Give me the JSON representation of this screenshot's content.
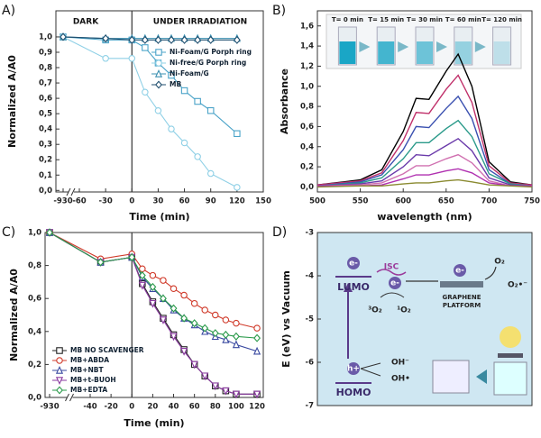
{
  "chart_data": [
    {
      "type": "line",
      "panel": "A)",
      "xlabel": "Time (min)",
      "ylabel": "Normalized A/A0",
      "annotations": [
        "DARK",
        "UNDER IRRADIATION"
      ],
      "x": [
        -930,
        -30,
        0,
        15,
        30,
        45,
        60,
        75,
        90,
        120
      ],
      "xlim": [
        -930,
        150
      ],
      "xticks": [
        -930,
        -60,
        -30,
        0,
        30,
        60,
        90,
        120,
        150
      ],
      "axis_break": true,
      "divider_x": 0,
      "ylim": [
        -0.01,
        1.17
      ],
      "yticks": [
        {
          "value": 0,
          "label": "0,0"
        },
        {
          "value": 0.1,
          "label": "0,1"
        },
        {
          "value": 0.2,
          "label": "0,2"
        },
        {
          "value": 0.3,
          "label": "0,3"
        },
        {
          "value": 0.4,
          "label": "0,4"
        },
        {
          "value": 0.5,
          "label": "0,5"
        },
        {
          "value": 0.6,
          "label": "0,6"
        },
        {
          "value": 0.7,
          "label": "0,7"
        },
        {
          "value": 0.8,
          "label": "0,8"
        },
        {
          "value": 0.9,
          "label": "0,9"
        },
        {
          "value": 1.0,
          "label": "1,0"
        }
      ],
      "legend": "upper-right",
      "series": [
        {
          "name": "Ni-Foam/G Porph ring",
          "color": "#4aa3c8",
          "marker": "square",
          "values": [
            1.0,
            0.98,
            0.98,
            0.93,
            0.83,
            0.75,
            0.65,
            0.58,
            0.52,
            0.37
          ]
        },
        {
          "name": "Ni-free/G Porph ring",
          "color": "#8fd0e6",
          "marker": "circle",
          "values": [
            1.0,
            0.86,
            0.86,
            0.64,
            0.52,
            0.4,
            0.31,
            0.22,
            0.11,
            0.02
          ]
        },
        {
          "name": "Ni-Foam/G",
          "color": "#3a8fb0",
          "marker": "triangle",
          "values": [
            1.0,
            0.99,
            0.99,
            0.99,
            0.99,
            0.99,
            0.99,
            0.99,
            0.99,
            0.99
          ]
        },
        {
          "name": "MB",
          "color": "#1f4e6e",
          "marker": "diamond",
          "values": [
            1.0,
            0.99,
            0.98,
            0.98,
            0.98,
            0.98,
            0.98,
            0.98,
            0.98,
            0.98
          ]
        }
      ]
    },
    {
      "type": "line",
      "panel": "B)",
      "xlabel": "wavelength (nm)",
      "ylabel": "Absorbance",
      "inset_labels": [
        {
          "text": "T= 0 min",
          "color": "#000000"
        },
        {
          "text": "T= 15 min",
          "color": "#c0306a"
        },
        {
          "text": "T= 30 min",
          "color": "#2a9a5a"
        },
        {
          "text": "T= 60 min",
          "color": "#6a3aaa"
        },
        {
          "text": "T= 120 min",
          "color": "#8a8a30"
        }
      ],
      "x": [
        500,
        550,
        575,
        600,
        615,
        630,
        650,
        664,
        680,
        700,
        725,
        750
      ],
      "xlim": [
        500,
        750
      ],
      "xticks": [
        500,
        550,
        600,
        650,
        700,
        750
      ],
      "ylim": [
        -0.05,
        1.75
      ],
      "yticks": [
        {
          "value": 0,
          "label": "0,0"
        },
        {
          "value": 0.2,
          "label": "0,2"
        },
        {
          "value": 0.4,
          "label": "0,4"
        },
        {
          "value": 0.6,
          "label": "0,6"
        },
        {
          "value": 0.8,
          "label": "0,8"
        },
        {
          "value": 1.0,
          "label": "1,0"
        },
        {
          "value": 1.2,
          "label": "1,2"
        },
        {
          "value": 1.4,
          "label": "1,4"
        },
        {
          "value": 1.6,
          "label": "1,6"
        }
      ],
      "series": [
        {
          "color": "#000000",
          "values": [
            0.02,
            0.07,
            0.17,
            0.55,
            0.88,
            0.87,
            1.15,
            1.32,
            1.0,
            0.25,
            0.05,
            0.02
          ]
        },
        {
          "color": "#c0306a",
          "values": [
            0.02,
            0.06,
            0.14,
            0.46,
            0.74,
            0.73,
            0.97,
            1.11,
            0.84,
            0.21,
            0.04,
            0.02
          ]
        },
        {
          "color": "#3a50b0",
          "values": [
            0.01,
            0.05,
            0.12,
            0.37,
            0.6,
            0.59,
            0.78,
            0.9,
            0.68,
            0.17,
            0.03,
            0.01
          ]
        },
        {
          "color": "#2a9a8a",
          "values": [
            0.01,
            0.04,
            0.09,
            0.28,
            0.44,
            0.44,
            0.58,
            0.66,
            0.5,
            0.13,
            0.03,
            0.01
          ]
        },
        {
          "color": "#6a3aaa",
          "values": [
            0.01,
            0.03,
            0.06,
            0.2,
            0.32,
            0.31,
            0.41,
            0.48,
            0.36,
            0.09,
            0.02,
            0.01
          ]
        },
        {
          "color": "#d070b0",
          "values": [
            0.01,
            0.02,
            0.04,
            0.13,
            0.21,
            0.21,
            0.28,
            0.32,
            0.24,
            0.06,
            0.01,
            0.01
          ]
        },
        {
          "color": "#b030b0",
          "values": [
            0.01,
            0.01,
            0.02,
            0.08,
            0.12,
            0.12,
            0.16,
            0.18,
            0.14,
            0.04,
            0.01,
            0.01
          ]
        },
        {
          "color": "#8a8a30",
          "values": [
            0.0,
            0.01,
            0.01,
            0.03,
            0.04,
            0.04,
            0.06,
            0.07,
            0.05,
            0.02,
            0.01,
            0.0
          ]
        }
      ]
    },
    {
      "type": "line",
      "panel": "C)",
      "xlabel": "Time (min)",
      "ylabel": "Normalized A/A0",
      "x": [
        -930,
        -30,
        0,
        10,
        20,
        30,
        40,
        50,
        60,
        70,
        80,
        90,
        100,
        120
      ],
      "xlim": [
        -930,
        126
      ],
      "xticks": [
        -930,
        -40,
        -20,
        0,
        20,
        40,
        60,
        80,
        100,
        120
      ],
      "axis_break": true,
      "divider_x": 0,
      "ylim": [
        0,
        1.0
      ],
      "yticks": [
        {
          "value": 0,
          "label": "0,0"
        },
        {
          "value": 0.2,
          "label": "0,2"
        },
        {
          "value": 0.4,
          "label": "0,4"
        },
        {
          "value": 0.6,
          "label": "0,6"
        },
        {
          "value": 0.8,
          "label": "0,8"
        },
        {
          "value": 1.0,
          "label": "1,0"
        }
      ],
      "legend": "lower-left",
      "series": [
        {
          "name": "MB  NO SCAVENGER",
          "color": "#222222",
          "marker": "square",
          "values": [
            1.0,
            0.82,
            0.85,
            0.69,
            0.58,
            0.48,
            0.38,
            0.29,
            0.2,
            0.13,
            0.07,
            0.04,
            0.02,
            0.02
          ]
        },
        {
          "name": "MB+ABDA",
          "color": "#d03a2a",
          "marker": "circle",
          "values": [
            1.0,
            0.84,
            0.87,
            0.78,
            0.74,
            0.71,
            0.66,
            0.62,
            0.57,
            0.53,
            0.5,
            0.47,
            0.45,
            0.42
          ]
        },
        {
          "name": "MB+NBT",
          "color": "#3a4aa0",
          "marker": "triangle",
          "values": [
            1.0,
            0.82,
            0.85,
            0.73,
            0.66,
            0.6,
            0.53,
            0.48,
            0.44,
            0.4,
            0.37,
            0.35,
            0.32,
            0.28
          ]
        },
        {
          "name": "MB+t-BUOH",
          "color": "#8a3aa0",
          "marker": "triangle-down",
          "values": [
            1.0,
            0.82,
            0.85,
            0.68,
            0.57,
            0.47,
            0.37,
            0.28,
            0.2,
            0.13,
            0.07,
            0.04,
            0.02,
            0.02
          ]
        },
        {
          "name": "MB+EDTA",
          "color": "#2a9a4a",
          "marker": "diamond",
          "values": [
            1.0,
            0.82,
            0.85,
            0.74,
            0.67,
            0.6,
            0.54,
            0.48,
            0.45,
            0.42,
            0.39,
            0.38,
            0.37,
            0.36
          ]
        }
      ]
    },
    {
      "type": "energy-diagram",
      "panel": "D)",
      "ylabel": "E (eV) vs Vacuum",
      "ylim": [
        -7,
        -3
      ],
      "yticks": [
        -3,
        -4,
        -5,
        -6,
        -7
      ],
      "labels": {
        "lumo": "LUMO",
        "homo": "HOMO",
        "e1": "e-",
        "e2": "e-",
        "e3": "e-",
        "hole": "h+",
        "isc": "ISC",
        "triplet": "³O₂",
        "singlet": "¹O₂",
        "graphene": "GRAPHENE",
        "platform": "PLATFORM",
        "o2": "O₂",
        "superoxide": "O₂•⁻",
        "oh_minus": "OH⁻",
        "oh_radical": "OH•"
      }
    }
  ]
}
